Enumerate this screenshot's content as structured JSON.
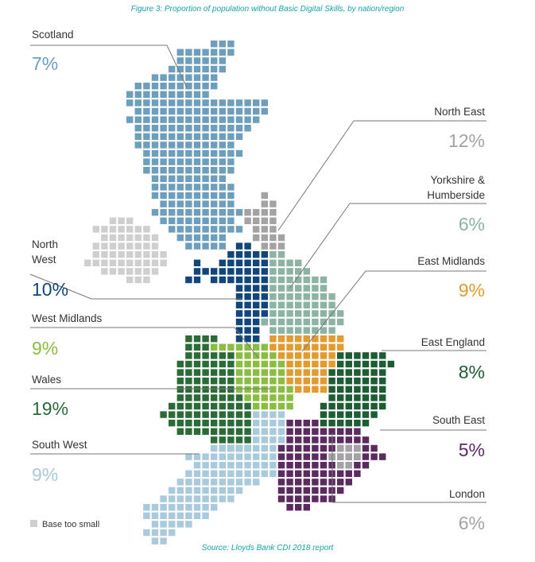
{
  "caption": "Figure 3: Proportion of population without Basic Digital Skills, by nation/region",
  "source": "Source: Lloyds Bank CDI 2018 report",
  "legend": {
    "label": "Base too small",
    "color": "#cfcfcf"
  },
  "chart_data": {
    "type": "map",
    "unit": "%",
    "regions": [
      {
        "name": "Scotland",
        "value": 7,
        "label": "7%",
        "color": "#6d9fbd"
      },
      {
        "name": "North East",
        "value": 12,
        "label": "12%",
        "color": "#a3a3a3"
      },
      {
        "name": "Yorkshire & Humberside",
        "label_lines": [
          "Yorkshire &",
          "Humberside"
        ],
        "value": 6,
        "label": "6%",
        "color": "#8cb3a3"
      },
      {
        "name": "North West",
        "label_lines": [
          "North",
          "West"
        ],
        "value": 10,
        "label": "10%",
        "color": "#12467a"
      },
      {
        "name": "East Midlands",
        "value": 9,
        "label": "9%",
        "color": "#e39a2e"
      },
      {
        "name": "West Midlands",
        "value": 9,
        "label": "9%",
        "color": "#8cbd43"
      },
      {
        "name": "East England",
        "value": 8,
        "label": "8%",
        "color": "#1e5c33"
      },
      {
        "name": "Wales",
        "value": 19,
        "label": "19%",
        "color": "#2a6b38"
      },
      {
        "name": "South East",
        "value": 5,
        "label": "5%",
        "color": "#5b2a61"
      },
      {
        "name": "South West",
        "value": 9,
        "label": "9%",
        "color": "#a9c9dc"
      },
      {
        "name": "London",
        "value": 6,
        "label": "6%",
        "color": "#a3a3a3"
      }
    ]
  }
}
